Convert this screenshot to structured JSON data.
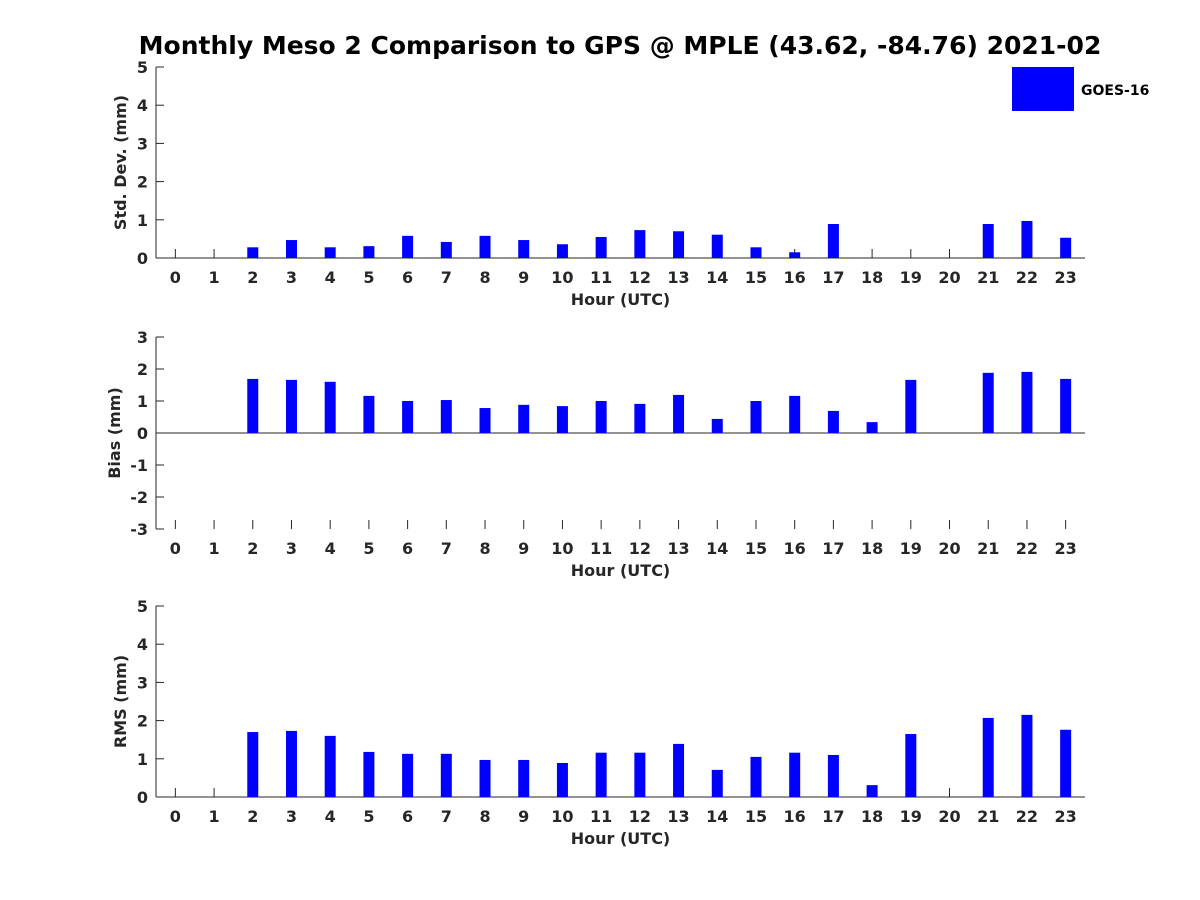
{
  "title": "Monthly Meso 2 Comparison to GPS @ MPLE (43.62, -84.76) 2021-02",
  "legend": {
    "label": "GOES-16",
    "color": "#0000ff"
  },
  "colors": {
    "bar": "#0000ff",
    "axis": "#262626",
    "text": "#262626"
  },
  "chart_data": [
    {
      "type": "bar",
      "xlabel": "Hour (UTC)",
      "ylabel": "Std. Dev. (mm)",
      "ylim": [
        0,
        5
      ],
      "yticks": [
        0,
        1,
        2,
        3,
        4,
        5
      ],
      "categories": [
        "0",
        "1",
        "2",
        "3",
        "4",
        "5",
        "6",
        "7",
        "8",
        "9",
        "10",
        "11",
        "12",
        "13",
        "14",
        "15",
        "16",
        "17",
        "18",
        "19",
        "20",
        "21",
        "22",
        "23"
      ],
      "series": [
        {
          "name": "GOES-16",
          "values": [
            null,
            null,
            0.28,
            0.47,
            0.28,
            0.31,
            0.58,
            0.42,
            0.58,
            0.47,
            0.36,
            0.55,
            0.73,
            0.7,
            0.61,
            0.28,
            0.15,
            0.89,
            null,
            null,
            null,
            0.89,
            0.97,
            0.53
          ]
        }
      ]
    },
    {
      "type": "bar",
      "xlabel": "Hour (UTC)",
      "ylabel": "Bias (mm)",
      "ylim": [
        -3,
        3
      ],
      "yticks": [
        -3,
        -2,
        -1,
        0,
        1,
        2,
        3
      ],
      "categories": [
        "0",
        "1",
        "2",
        "3",
        "4",
        "5",
        "6",
        "7",
        "8",
        "9",
        "10",
        "11",
        "12",
        "13",
        "14",
        "15",
        "16",
        "17",
        "18",
        "19",
        "20",
        "21",
        "22",
        "23"
      ],
      "series": [
        {
          "name": "GOES-16",
          "values": [
            null,
            null,
            1.69,
            1.66,
            1.6,
            1.16,
            1.0,
            1.03,
            0.78,
            0.88,
            0.84,
            1.0,
            0.91,
            1.19,
            0.44,
            1.0,
            1.16,
            0.69,
            0.34,
            1.66,
            null,
            1.88,
            1.91,
            1.69
          ]
        }
      ]
    },
    {
      "type": "bar",
      "xlabel": "Hour (UTC)",
      "ylabel": "RMS (mm)",
      "ylim": [
        0,
        5
      ],
      "yticks": [
        0,
        1,
        2,
        3,
        4,
        5
      ],
      "categories": [
        "0",
        "1",
        "2",
        "3",
        "4",
        "5",
        "6",
        "7",
        "8",
        "9",
        "10",
        "11",
        "12",
        "13",
        "14",
        "15",
        "16",
        "17",
        "18",
        "19",
        "20",
        "21",
        "22",
        "23"
      ],
      "series": [
        {
          "name": "GOES-16",
          "values": [
            null,
            null,
            1.7,
            1.73,
            1.6,
            1.18,
            1.13,
            1.13,
            0.97,
            0.97,
            0.89,
            1.16,
            1.16,
            1.39,
            0.71,
            1.05,
            1.16,
            1.1,
            0.31,
            1.65,
            null,
            2.07,
            2.15,
            1.76
          ]
        }
      ]
    }
  ]
}
